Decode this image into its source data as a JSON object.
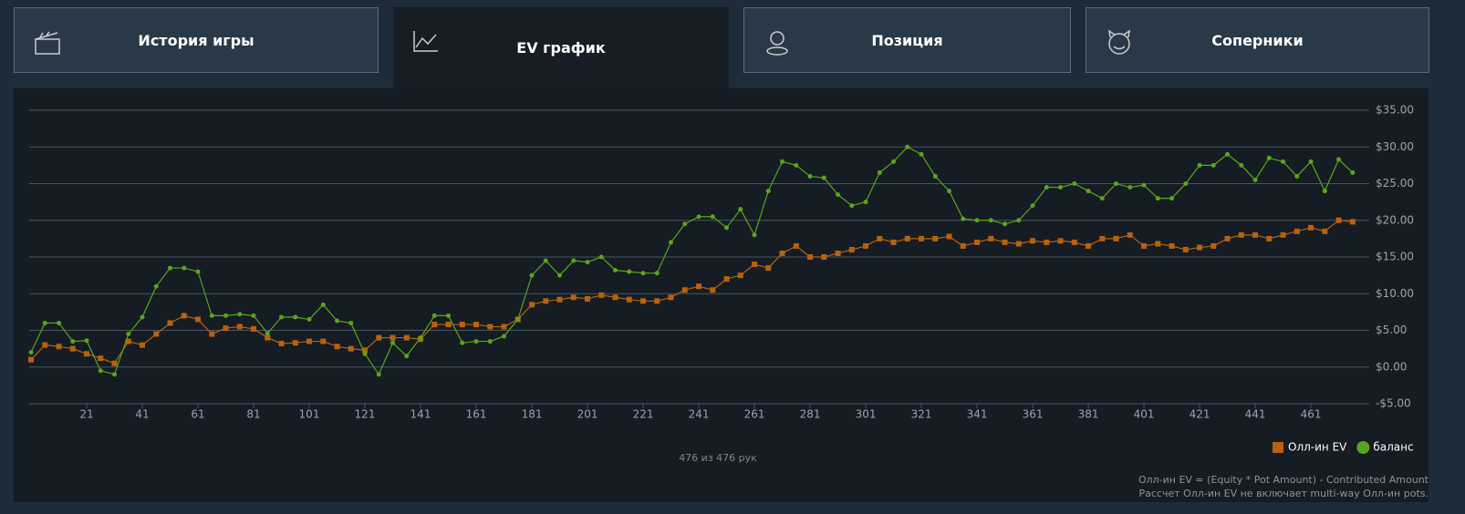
{
  "tabs": [
    "История игры",
    "EV график",
    "Позиция",
    "Соперники"
  ],
  "chart_data": {
    "type": "line",
    "x": [
      1,
      6,
      11,
      16,
      21,
      26,
      31,
      36,
      41,
      46,
      51,
      56,
      61,
      66,
      71,
      76,
      81,
      86,
      91,
      96,
      101,
      106,
      111,
      116,
      121,
      126,
      131,
      136,
      141,
      146,
      151,
      156,
      161,
      166,
      171,
      176,
      181,
      186,
      191,
      196,
      201,
      206,
      211,
      216,
      221,
      226,
      231,
      236,
      241,
      246,
      251,
      256,
      261,
      266,
      271,
      276,
      281,
      286,
      291,
      296,
      301,
      306,
      311,
      316,
      321,
      326,
      331,
      336,
      341,
      346,
      351,
      356,
      361,
      366,
      371,
      376,
      381,
      386,
      391,
      396,
      401,
      406,
      411,
      416,
      421,
      426,
      431,
      436,
      441,
      446,
      451,
      456,
      461,
      466,
      471,
      476
    ],
    "series": [
      {
        "name": "Олл-ин EV",
        "color": "#b8620e",
        "marker": "square",
        "values": [
          1.0,
          3.0,
          2.8,
          2.5,
          1.8,
          1.2,
          0.5,
          3.5,
          3.0,
          4.5,
          6.0,
          7.0,
          6.5,
          4.5,
          5.3,
          5.5,
          5.2,
          4.0,
          3.2,
          3.3,
          3.5,
          3.5,
          2.8,
          2.5,
          2.3,
          4.0,
          4.0,
          4.0,
          3.8,
          5.8,
          5.8,
          5.8,
          5.8,
          5.5,
          5.5,
          6.5,
          8.5,
          9.0,
          9.2,
          9.5,
          9.3,
          9.8,
          9.5,
          9.2,
          9.0,
          9.0,
          9.5,
          10.5,
          11.0,
          10.5,
          12.0,
          12.5,
          14.0,
          13.5,
          15.5,
          16.5,
          15.0,
          15.0,
          15.5,
          16.0,
          16.5,
          17.5,
          17.0,
          17.5,
          17.5,
          17.5,
          17.8,
          16.5,
          17.0,
          17.5,
          17.0,
          16.8,
          17.2,
          17.0,
          17.2,
          17.0,
          16.5,
          17.5,
          17.5,
          18.0,
          16.5,
          16.8,
          16.5,
          16.0,
          16.3,
          16.5,
          17.5,
          18.0,
          18.0,
          17.5,
          18.0,
          18.5,
          19.0,
          18.5,
          20.0,
          19.8
        ]
      },
      {
        "name": "баланс",
        "color": "#5aa51a",
        "marker": "circle",
        "values": [
          2.0,
          6.0,
          6.0,
          3.5,
          3.6,
          -0.5,
          -1.0,
          4.5,
          6.8,
          11.0,
          13.5,
          13.5,
          13.0,
          7.0,
          7.0,
          7.2,
          7.0,
          4.6,
          6.8,
          6.8,
          6.5,
          8.5,
          6.3,
          6.0,
          1.8,
          -1.0,
          3.3,
          1.5,
          4.0,
          7.0,
          7.0,
          3.3,
          3.5,
          3.5,
          4.2,
          6.5,
          12.5,
          14.5,
          12.5,
          14.5,
          14.3,
          15.0,
          13.2,
          13.0,
          12.8,
          12.8,
          17.0,
          19.5,
          20.5,
          20.5,
          19.0,
          21.5,
          18.0,
          24.0,
          28.0,
          27.5,
          26.0,
          25.8,
          23.5,
          22.0,
          22.5,
          26.5,
          28.0,
          30.0,
          29.0,
          26.0,
          24.0,
          20.2,
          20.0,
          20.0,
          19.5,
          20.0,
          22.0,
          24.5,
          24.5,
          25.0,
          24.0,
          23.0,
          25.0,
          24.5,
          24.8,
          23.0,
          23.0,
          25.0,
          27.5,
          27.5,
          29.0,
          27.5,
          25.5,
          28.5,
          28.0,
          26.0,
          28.0,
          24.0,
          28.3,
          26.5
        ]
      }
    ],
    "xlim": [
      1,
      480
    ],
    "xticks": [
      21,
      41,
      61,
      81,
      101,
      121,
      141,
      161,
      181,
      201,
      221,
      241,
      261,
      281,
      301,
      321,
      341,
      361,
      381,
      401,
      421,
      441,
      461
    ],
    "ylim": [
      -5,
      35
    ],
    "yticks": [
      {
        "value": -5,
        "label": "-$5.00"
      },
      {
        "value": 0,
        "label": "$0.00"
      },
      {
        "value": 5,
        "label": "$5.00"
      },
      {
        "value": 10,
        "label": "$10.00"
      },
      {
        "value": 15,
        "label": "$15.00"
      },
      {
        "value": 20,
        "label": "$20.00"
      },
      {
        "value": 25,
        "label": "$25.00"
      },
      {
        "value": 30,
        "label": "$30.00"
      },
      {
        "value": 35,
        "label": "$35.00"
      }
    ],
    "grid": true,
    "legend": "bottom-right",
    "counter": "476 из 476 рук",
    "notes": [
      "Олл-ин EV = (Equity * Pot Amount) - Contributed Amount",
      "Рассчет Олл-ин EV не включает multi-way Олл-ин pots."
    ]
  }
}
